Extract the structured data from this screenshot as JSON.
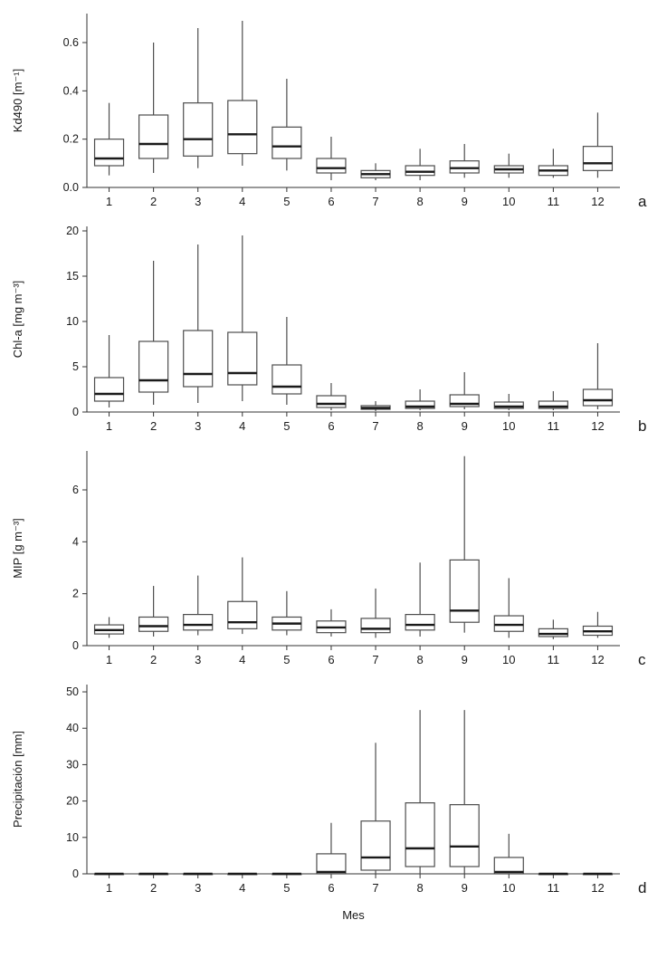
{
  "figure": {
    "xlabel": "Mes",
    "categories": [
      "1",
      "2",
      "3",
      "4",
      "5",
      "6",
      "7",
      "8",
      "9",
      "10",
      "11",
      "12"
    ]
  },
  "style": {
    "axis_color": "#333333",
    "box_stroke": "#4d4d4d",
    "box_fill": "#ffffff",
    "median_color": "#1a1a1a",
    "text_color": "#1a1a1a"
  },
  "chart_data": [
    {
      "type": "boxplot",
      "panel_label": "a",
      "ylabel": "Kd490 [m⁻¹]",
      "ylim": [
        0,
        0.72
      ],
      "yticks": [
        0,
        0.2,
        0.4,
        0.6
      ],
      "ytick_labels": [
        "0.0",
        "0.2",
        "0.4",
        "0.6"
      ],
      "categories": [
        "1",
        "2",
        "3",
        "4",
        "5",
        "6",
        "7",
        "8",
        "9",
        "10",
        "11",
        "12"
      ],
      "boxes": [
        {
          "low": 0.05,
          "q1": 0.09,
          "median": 0.12,
          "q3": 0.2,
          "high": 0.35
        },
        {
          "low": 0.06,
          "q1": 0.12,
          "median": 0.18,
          "q3": 0.3,
          "high": 0.6
        },
        {
          "low": 0.08,
          "q1": 0.13,
          "median": 0.2,
          "q3": 0.35,
          "high": 0.66
        },
        {
          "low": 0.09,
          "q1": 0.14,
          "median": 0.22,
          "q3": 0.36,
          "high": 0.69
        },
        {
          "low": 0.07,
          "q1": 0.12,
          "median": 0.17,
          "q3": 0.25,
          "high": 0.45
        },
        {
          "low": 0.03,
          "q1": 0.06,
          "median": 0.08,
          "q3": 0.12,
          "high": 0.21
        },
        {
          "low": 0.03,
          "q1": 0.04,
          "median": 0.055,
          "q3": 0.07,
          "high": 0.1
        },
        {
          "low": 0.03,
          "q1": 0.05,
          "median": 0.065,
          "q3": 0.09,
          "high": 0.16
        },
        {
          "low": 0.04,
          "q1": 0.06,
          "median": 0.08,
          "q3": 0.11,
          "high": 0.18
        },
        {
          "low": 0.04,
          "q1": 0.06,
          "median": 0.075,
          "q3": 0.09,
          "high": 0.14
        },
        {
          "low": 0.04,
          "q1": 0.05,
          "median": 0.07,
          "q3": 0.09,
          "high": 0.16
        },
        {
          "low": 0.04,
          "q1": 0.07,
          "median": 0.1,
          "q3": 0.17,
          "high": 0.31
        }
      ]
    },
    {
      "type": "boxplot",
      "panel_label": "b",
      "ylabel": "Chl-a [mg m⁻³]",
      "ylim": [
        0,
        20.5
      ],
      "yticks": [
        0,
        5,
        10,
        15,
        20
      ],
      "ytick_labels": [
        "0",
        "5",
        "10",
        "15",
        "20"
      ],
      "categories": [
        "1",
        "2",
        "3",
        "4",
        "5",
        "6",
        "7",
        "8",
        "9",
        "10",
        "11",
        "12"
      ],
      "boxes": [
        {
          "low": 0.5,
          "q1": 1.2,
          "median": 2.0,
          "q3": 3.8,
          "high": 8.5
        },
        {
          "low": 0.8,
          "q1": 2.2,
          "median": 3.5,
          "q3": 7.8,
          "high": 16.7
        },
        {
          "low": 1.0,
          "q1": 2.8,
          "median": 4.2,
          "q3": 9.0,
          "high": 18.5
        },
        {
          "low": 1.2,
          "q1": 3.0,
          "median": 4.3,
          "q3": 8.8,
          "high": 19.5
        },
        {
          "low": 0.8,
          "q1": 2.0,
          "median": 2.8,
          "q3": 5.2,
          "high": 10.5
        },
        {
          "low": 0.2,
          "q1": 0.5,
          "median": 0.9,
          "q3": 1.8,
          "high": 3.2
        },
        {
          "low": 0.1,
          "q1": 0.3,
          "median": 0.45,
          "q3": 0.7,
          "high": 1.2
        },
        {
          "low": 0.2,
          "q1": 0.4,
          "median": 0.6,
          "q3": 1.2,
          "high": 2.5
        },
        {
          "low": 0.3,
          "q1": 0.6,
          "median": 0.9,
          "q3": 1.9,
          "high": 4.4
        },
        {
          "low": 0.2,
          "q1": 0.4,
          "median": 0.6,
          "q3": 1.1,
          "high": 2.0
        },
        {
          "low": 0.2,
          "q1": 0.4,
          "median": 0.6,
          "q3": 1.2,
          "high": 2.3
        },
        {
          "low": 0.3,
          "q1": 0.7,
          "median": 1.3,
          "q3": 2.5,
          "high": 7.6
        }
      ]
    },
    {
      "type": "boxplot",
      "panel_label": "c",
      "ylabel": "MIP [g m⁻³]",
      "ylim": [
        0,
        7.5
      ],
      "yticks": [
        0,
        2,
        4,
        6
      ],
      "ytick_labels": [
        "0",
        "2",
        "4",
        "6"
      ],
      "categories": [
        "1",
        "2",
        "3",
        "4",
        "5",
        "6",
        "7",
        "8",
        "9",
        "10",
        "11",
        "12"
      ],
      "boxes": [
        {
          "low": 0.3,
          "q1": 0.45,
          "median": 0.6,
          "q3": 0.8,
          "high": 1.1
        },
        {
          "low": 0.35,
          "q1": 0.55,
          "median": 0.75,
          "q3": 1.1,
          "high": 2.3
        },
        {
          "low": 0.4,
          "q1": 0.6,
          "median": 0.8,
          "q3": 1.2,
          "high": 2.7
        },
        {
          "low": 0.45,
          "q1": 0.65,
          "median": 0.9,
          "q3": 1.7,
          "high": 3.4
        },
        {
          "low": 0.4,
          "q1": 0.6,
          "median": 0.85,
          "q3": 1.1,
          "high": 2.1
        },
        {
          "low": 0.35,
          "q1": 0.5,
          "median": 0.7,
          "q3": 0.95,
          "high": 1.4
        },
        {
          "low": 0.3,
          "q1": 0.5,
          "median": 0.65,
          "q3": 1.05,
          "high": 2.2
        },
        {
          "low": 0.35,
          "q1": 0.6,
          "median": 0.8,
          "q3": 1.2,
          "high": 3.2
        },
        {
          "low": 0.5,
          "q1": 0.9,
          "median": 1.35,
          "q3": 3.3,
          "high": 7.3
        },
        {
          "low": 0.3,
          "q1": 0.55,
          "median": 0.8,
          "q3": 1.15,
          "high": 2.6
        },
        {
          "low": 0.25,
          "q1": 0.35,
          "median": 0.45,
          "q3": 0.65,
          "high": 1.0
        },
        {
          "low": 0.3,
          "q1": 0.4,
          "median": 0.55,
          "q3": 0.75,
          "high": 1.3
        }
      ]
    },
    {
      "type": "boxplot",
      "panel_label": "d",
      "ylabel": "Precipitación [mm]",
      "ylim": [
        0,
        52
      ],
      "yticks": [
        0,
        10,
        20,
        30,
        40,
        50
      ],
      "ytick_labels": [
        "0",
        "10",
        "20",
        "30",
        "40",
        "50"
      ],
      "categories": [
        "1",
        "2",
        "3",
        "4",
        "5",
        "6",
        "7",
        "8",
        "9",
        "10",
        "11",
        "12"
      ],
      "boxes": [
        {
          "low": 0,
          "q1": 0,
          "median": 0,
          "q3": 0,
          "high": 0
        },
        {
          "low": 0,
          "q1": 0,
          "median": 0,
          "q3": 0,
          "high": 0
        },
        {
          "low": 0,
          "q1": 0,
          "median": 0,
          "q3": 0,
          "high": 0
        },
        {
          "low": 0,
          "q1": 0,
          "median": 0,
          "q3": 0,
          "high": 0
        },
        {
          "low": 0,
          "q1": 0,
          "median": 0,
          "q3": 0,
          "high": 0
        },
        {
          "low": 0,
          "q1": 0,
          "median": 0.5,
          "q3": 5.5,
          "high": 14
        },
        {
          "low": 0,
          "q1": 1,
          "median": 4.5,
          "q3": 14.5,
          "high": 36
        },
        {
          "low": 0,
          "q1": 2,
          "median": 7,
          "q3": 19.5,
          "high": 45
        },
        {
          "low": 0,
          "q1": 2,
          "median": 7.5,
          "q3": 19,
          "high": 45
        },
        {
          "low": 0,
          "q1": 0,
          "median": 0.5,
          "q3": 4.5,
          "high": 11
        },
        {
          "low": 0,
          "q1": 0,
          "median": 0,
          "q3": 0,
          "high": 0
        },
        {
          "low": 0,
          "q1": 0,
          "median": 0,
          "q3": 0,
          "high": 0
        }
      ]
    }
  ]
}
